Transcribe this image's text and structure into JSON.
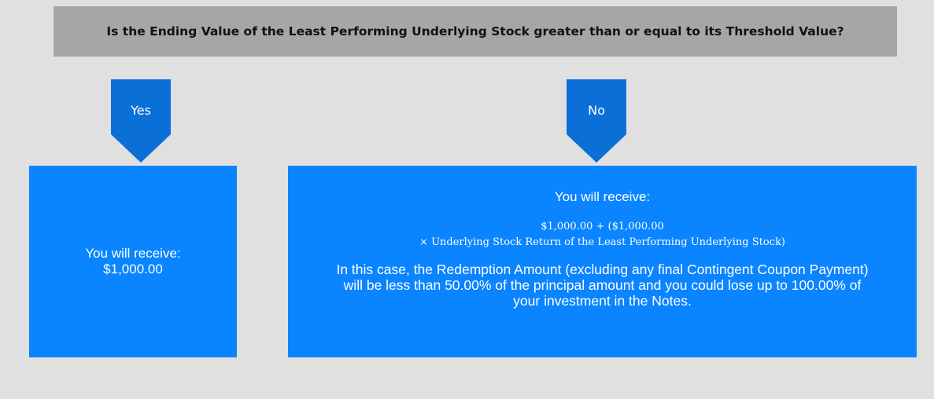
{
  "question": "Is the Ending Value of the Least Performing Underlying Stock greater than or equal to its Threshold Value?",
  "branches": [
    {
      "label": "Yes",
      "lines": [
        "You will receive:",
        "$1,000.00"
      ]
    },
    {
      "label": "No",
      "heading": "You will receive:",
      "formula": [
        "$1,000.00 + ($1,000.00",
        "× Underlying Stock Return of the Least Performing Underlying Stock)"
      ],
      "note": "In this case, the Redemption Amount (excluding any final Contingent Coupon Payment) will be less than 50.00% of the principal amount and you could lose up to 100.00% of your investment in the Notes."
    }
  ]
}
